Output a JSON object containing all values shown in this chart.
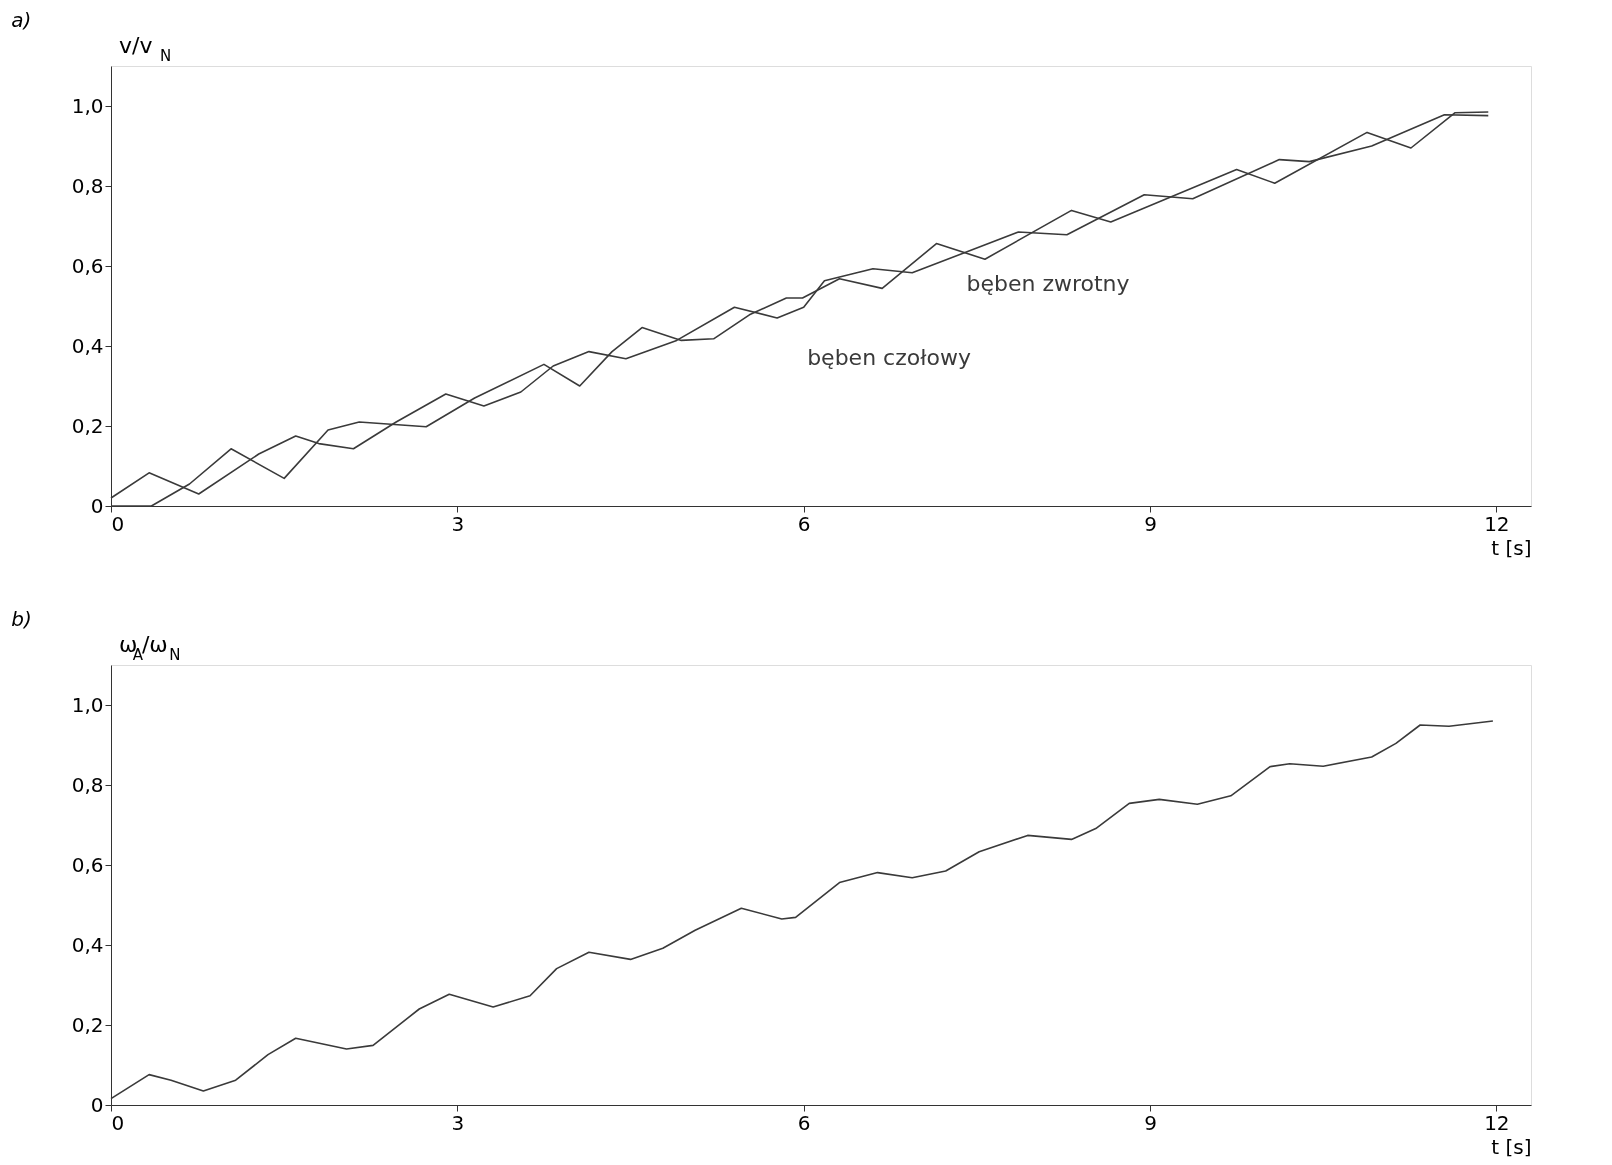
{
  "chart_data": [
    {
      "type": "line",
      "title": "a)",
      "xlabel": "t [s]",
      "ylabel": "v/v$_{N}$",
      "xlim": [
        0,
        12.3
      ],
      "ylim": [
        0,
        1.1
      ],
      "xticks": [
        0,
        3,
        6,
        9,
        12
      ],
      "yticks": [
        0,
        {
          "value": 0.2,
          "label": "0,2"
        },
        {
          "value": 0.4,
          "label": "0,4"
        },
        {
          "value": 0.6,
          "label": "0,6"
        },
        {
          "value": 0.8,
          "label": "0,8"
        },
        {
          "value": 1.0,
          "label": "1,0"
        }
      ],
      "grid": false,
      "marker": "none",
      "line_style": "solid",
      "series": [
        {
          "name": "bęben czołowy",
          "color": "#3a3a3a",
          "x": [
            0,
            0.33,
            0.76,
            1.28,
            1.6,
            1.8,
            2.1,
            2.47,
            2.9,
            3.23,
            3.55,
            3.83,
            4.14,
            4.46,
            4.9,
            5.4,
            5.77,
            6.0,
            6.18,
            6.6,
            6.94,
            7.86,
            8.28,
            8.95,
            9.37,
            10.12,
            10.38,
            10.92,
            11.55,
            11.93
          ],
          "values": [
            0.02,
            0.083,
            0.03,
            0.13,
            0.175,
            0.156,
            0.143,
            0.21,
            0.28,
            0.25,
            0.285,
            0.35,
            0.386,
            0.368,
            0.414,
            0.497,
            0.47,
            0.497,
            0.563,
            0.593,
            0.583,
            0.685,
            0.678,
            0.778,
            0.768,
            0.866,
            0.861,
            0.9,
            0.978,
            0.976
          ]
        },
        {
          "name": "bęben zwrotny",
          "color": "#3a3a3a",
          "x": [
            0,
            0.35,
            0.68,
            1.04,
            1.5,
            1.88,
            2.15,
            2.73,
            3.15,
            3.75,
            4.06,
            4.34,
            4.6,
            4.94,
            5.22,
            5.53,
            5.85,
            5.99,
            6.31,
            6.68,
            7.15,
            7.57,
            8.32,
            8.66,
            9.75,
            10.08,
            10.88,
            11.26,
            11.64,
            11.93
          ],
          "values": [
            0,
            0,
            0.055,
            0.143,
            0.069,
            0.19,
            0.21,
            0.198,
            0.27,
            0.354,
            0.3,
            0.386,
            0.446,
            0.414,
            0.418,
            0.478,
            0.52,
            0.52,
            0.568,
            0.544,
            0.656,
            0.617,
            0.739,
            0.71,
            0.841,
            0.807,
            0.934,
            0.895,
            0.983,
            0.985
          ]
        }
      ]
    },
    {
      "type": "line",
      "title": "b)",
      "xlabel": "t [s]",
      "ylabel": "ω$_{A}$/ω$_{N}$",
      "xlim": [
        0,
        12.3
      ],
      "ylim": [
        0,
        1.1
      ],
      "xticks": [
        0,
        3,
        6,
        9,
        12
      ],
      "yticks": [
        0,
        {
          "value": 0.2,
          "label": "0,2"
        },
        {
          "value": 0.4,
          "label": "0,4"
        },
        {
          "value": 0.6,
          "label": "0,6"
        },
        {
          "value": 0.8,
          "label": "0,8"
        },
        {
          "value": 1.0,
          "label": "1,0"
        }
      ],
      "grid": false,
      "marker": "none",
      "line_style": "solid",
      "series": [
        {
          "color": "#3a3a3a",
          "x": [
            0,
            0.33,
            0.52,
            0.8,
            1.08,
            1.36,
            1.6,
            2.04,
            2.27,
            2.67,
            2.93,
            3.31,
            3.63,
            3.86,
            4.14,
            4.5,
            4.78,
            5.06,
            5.46,
            5.81,
            5.93,
            6.31,
            6.64,
            6.94,
            7.23,
            7.52,
            7.94,
            8.32,
            8.53,
            8.82,
            9.08,
            9.41,
            9.7,
            10.04,
            10.21,
            10.5,
            10.92,
            11.13,
            11.34,
            11.59,
            11.97
          ],
          "values": [
            0.016,
            0.076,
            0.062,
            0.035,
            0.062,
            0.126,
            0.167,
            0.14,
            0.149,
            0.24,
            0.277,
            0.245,
            0.273,
            0.341,
            0.382,
            0.364,
            0.392,
            0.437,
            0.492,
            0.465,
            0.469,
            0.556,
            0.581,
            0.568,
            0.585,
            0.633,
            0.674,
            0.664,
            0.691,
            0.754,
            0.764,
            0.752,
            0.773,
            0.846,
            0.853,
            0.847,
            0.87,
            0.904,
            0.95,
            0.947,
            0.96
          ]
        }
      ]
    }
  ]
}
